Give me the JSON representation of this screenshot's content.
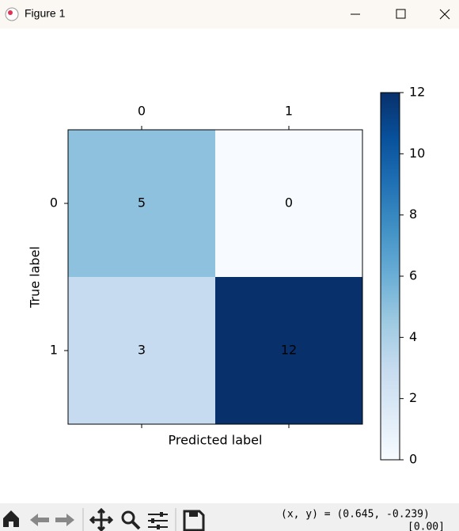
{
  "window": {
    "title": "Figure 1"
  },
  "status": {
    "coordinates": "(x, y) = (0.645, -0.239)",
    "value": "[0.00]"
  },
  "chart_data": {
    "type": "heatmap",
    "x_label": "Predicted label",
    "y_label": "True label",
    "x_categories": [
      "0",
      "1"
    ],
    "y_categories": [
      "0",
      "1"
    ],
    "values": [
      [
        5,
        0
      ],
      [
        3,
        12
      ]
    ],
    "colormap": [
      "#f7fbff",
      "#deebf7",
      "#c6dbef",
      "#9ecae1",
      "#6baed6",
      "#4292c6",
      "#2171b5",
      "#08519c",
      "#08306b"
    ],
    "colorbar_lim": [
      0,
      12
    ],
    "colorbar_ticks": [
      0,
      2,
      4,
      6,
      8,
      10,
      12
    ]
  }
}
